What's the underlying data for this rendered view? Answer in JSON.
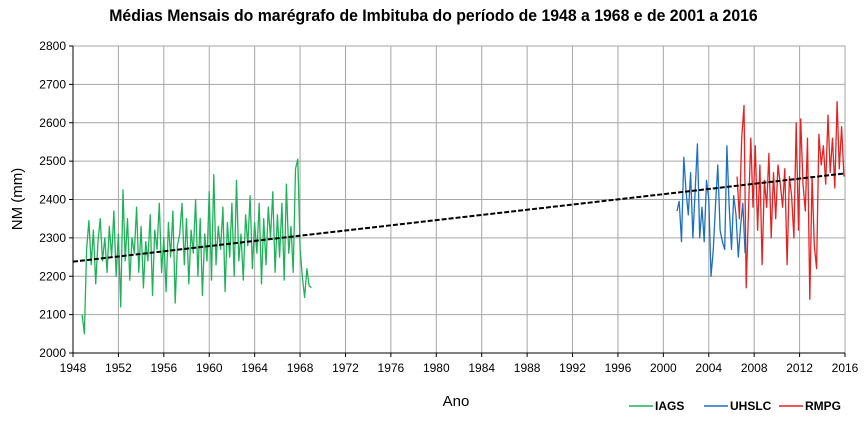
{
  "chart_data": {
    "type": "line",
    "title": "Médias Mensais do marégrafo de Imbituba do período de 1948 a 1968 e de 2001 a 2016",
    "xlabel": "Ano",
    "ylabel": "NM (mm)",
    "xlim": [
      1948,
      2016
    ],
    "ylim": [
      2000,
      2800
    ],
    "x_ticks": [
      1948,
      1952,
      1956,
      1960,
      1964,
      1968,
      1972,
      1976,
      1980,
      1984,
      1988,
      1992,
      1996,
      2000,
      2004,
      2008,
      2012,
      2016
    ],
    "y_ticks": [
      2000,
      2100,
      2200,
      2300,
      2400,
      2500,
      2600,
      2700,
      2800
    ],
    "grid": true,
    "legend_position": "bottom-right",
    "series": [
      {
        "name": "IAGS",
        "color": "#1fb15a",
        "x": [
          1948.8,
          1949.0,
          1949.2,
          1949.4,
          1949.6,
          1949.8,
          1950.0,
          1950.2,
          1950.4,
          1950.6,
          1950.8,
          1951.0,
          1951.2,
          1951.4,
          1951.6,
          1951.8,
          1952.0,
          1952.2,
          1952.4,
          1952.6,
          1952.8,
          1953.0,
          1953.2,
          1953.4,
          1953.6,
          1953.8,
          1954.0,
          1954.2,
          1954.4,
          1954.6,
          1954.8,
          1955.0,
          1955.2,
          1955.4,
          1955.6,
          1955.8,
          1956.0,
          1956.2,
          1956.4,
          1956.6,
          1956.8,
          1957.0,
          1957.2,
          1957.4,
          1957.6,
          1957.8,
          1958.0,
          1958.2,
          1958.4,
          1958.6,
          1958.8,
          1959.0,
          1959.2,
          1959.4,
          1959.6,
          1959.8,
          1960.0,
          1960.2,
          1960.4,
          1960.6,
          1960.8,
          1961.0,
          1961.2,
          1961.4,
          1961.6,
          1961.8,
          1962.0,
          1962.2,
          1962.4,
          1962.6,
          1962.8,
          1963.0,
          1963.2,
          1963.4,
          1963.6,
          1963.8,
          1964.0,
          1964.2,
          1964.4,
          1964.6,
          1964.8,
          1965.0,
          1965.2,
          1965.4,
          1965.6,
          1965.8,
          1966.0,
          1966.2,
          1966.4,
          1966.6,
          1966.8,
          1967.0,
          1967.2,
          1967.4,
          1967.6,
          1967.8,
          1968.0,
          1968.2,
          1968.4,
          1968.6,
          1968.8,
          1969.0
        ],
        "values": [
          2100,
          2050,
          2270,
          2345,
          2230,
          2320,
          2180,
          2290,
          2350,
          2240,
          2300,
          2210,
          2330,
          2250,
          2370,
          2200,
          2310,
          2120,
          2425,
          2240,
          2350,
          2190,
          2300,
          2260,
          2380,
          2210,
          2330,
          2170,
          2290,
          2240,
          2360,
          2150,
          2320,
          2270,
          2390,
          2210,
          2300,
          2160,
          2340,
          2250,
          2370,
          2130,
          2280,
          2310,
          2390,
          2230,
          2350,
          2180,
          2320,
          2260,
          2400,
          2200,
          2350,
          2150,
          2310,
          2240,
          2420,
          2190,
          2465,
          2230,
          2330,
          2270,
          2380,
          2160,
          2340,
          2250,
          2390,
          2200,
          2450,
          2240,
          2310,
          2190,
          2360,
          2280,
          2410,
          2220,
          2340,
          2260,
          2390,
          2180,
          2350,
          2230,
          2380,
          2300,
          2420,
          2210,
          2360,
          2250,
          2390,
          2190,
          2440,
          2260,
          2330,
          2210,
          2480,
          2505,
          2270,
          2200,
          2145,
          2220,
          2175,
          2170
        ]
      },
      {
        "name": "UHSLC",
        "color": "#1f6fbf",
        "x": [
          2001.2,
          2001.4,
          2001.6,
          2001.8,
          2002.0,
          2002.2,
          2002.4,
          2002.6,
          2002.8,
          2003.0,
          2003.2,
          2003.4,
          2003.6,
          2003.8,
          2004.0,
          2004.2,
          2004.4,
          2004.6,
          2004.8,
          2005.0,
          2005.2,
          2005.4,
          2005.6,
          2005.8,
          2006.0,
          2006.2,
          2006.4,
          2006.6,
          2006.8,
          2007.0,
          2007.2
        ],
        "values": [
          2370,
          2395,
          2290,
          2510,
          2420,
          2360,
          2470,
          2300,
          2420,
          2545,
          2300,
          2380,
          2290,
          2450,
          2400,
          2200,
          2270,
          2390,
          2490,
          2320,
          2290,
          2270,
          2540,
          2380,
          2270,
          2410,
          2360,
          2250,
          2330,
          2390,
          2260
        ]
      },
      {
        "name": "RMPG",
        "color": "#e32222",
        "x": [
          2006.5,
          2006.7,
          2006.9,
          2007.1,
          2007.3,
          2007.5,
          2007.7,
          2007.9,
          2008.1,
          2008.3,
          2008.5,
          2008.7,
          2008.9,
          2009.1,
          2009.3,
          2009.5,
          2009.7,
          2009.9,
          2010.1,
          2010.3,
          2010.5,
          2010.7,
          2010.9,
          2011.1,
          2011.3,
          2011.5,
          2011.7,
          2011.9,
          2012.1,
          2012.3,
          2012.5,
          2012.7,
          2012.9,
          2013.1,
          2013.3,
          2013.5,
          2013.7,
          2013.9,
          2014.1,
          2014.3,
          2014.5,
          2014.7,
          2014.9,
          2015.1,
          2015.3,
          2015.5,
          2015.7,
          2015.9
        ],
        "values": [
          2460,
          2350,
          2560,
          2645,
          2170,
          2370,
          2560,
          2380,
          2540,
          2320,
          2490,
          2230,
          2450,
          2380,
          2520,
          2300,
          2470,
          2350,
          2490,
          2440,
          2380,
          2480,
          2230,
          2460,
          2410,
          2300,
          2600,
          2320,
          2610,
          2440,
          2370,
          2560,
          2140,
          2460,
          2280,
          2220,
          2570,
          2490,
          2540,
          2440,
          2620,
          2470,
          2560,
          2430,
          2655,
          2480,
          2590,
          2460
        ]
      }
    ],
    "trend": {
      "name": "linear trend",
      "style": "dashed",
      "color": "#000000",
      "x": [
        1948,
        2016
      ],
      "values": [
        2238,
        2468
      ]
    }
  }
}
